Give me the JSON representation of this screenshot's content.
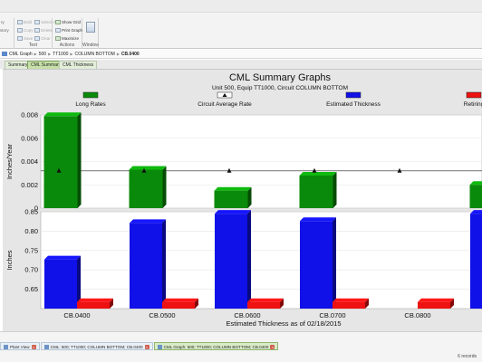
{
  "ribbon": {
    "groups": [
      {
        "name": "",
        "items": [
          "ry",
          "story"
        ]
      },
      {
        "name": "Text",
        "items": [
          "Bold",
          "Copy",
          "Save",
          "Select All",
          "Delete",
          "Clear"
        ]
      },
      {
        "name": "Actions",
        "items": [
          "Show Grid",
          "Print Graph",
          "Maximize"
        ]
      },
      {
        "name": "Window",
        "items": []
      }
    ]
  },
  "breadcrumb": [
    "CML Graph",
    "500",
    "TT1000",
    "COLUMN BOTTOM",
    "CB.0400"
  ],
  "tabs": [
    "Summary",
    "CML Summary",
    "CML Thickness"
  ],
  "chart_data": {
    "type": "bar",
    "title": "CML Summary Graphs",
    "subtitle": "Unit 500, Equip TT1000, Circuit COLUMN BOTTOM",
    "xlabel": "Estimated Thickness as of 02/18/2015",
    "legend": [
      "Long Rates",
      "Circuit Average Rate",
      "Estimated Thickness",
      "Retiring"
    ],
    "categories": [
      "CB.0400",
      "CB.0500",
      "CB.0600",
      "CB.0700",
      "CB.0800",
      "CB.0900"
    ],
    "top_panel": {
      "ylabel": "Inches/Year",
      "ylim": [
        0,
        0.008
      ],
      "yticks": [
        "0",
        "0.002",
        "0.004",
        "0.006",
        "0.008"
      ],
      "long_rates": [
        0.0079,
        0.0033,
        0.0015,
        0.0028,
        null,
        0.002
      ],
      "circuit_average_rate": 0.0032
    },
    "bottom_panel": {
      "ylabel": "Inches",
      "ylim": [
        0.6,
        0.85
      ],
      "yticks": [
        "0.65",
        "0.70",
        "0.75",
        "0.80",
        "0.85"
      ],
      "estimated_thickness": [
        0.727,
        0.821,
        0.845,
        0.826,
        null,
        0.845
      ],
      "retiring": [
        0.617,
        0.617,
        0.617,
        0.617,
        0.617,
        0.617
      ]
    },
    "colors": {
      "long_rates": "#0a8a0a",
      "estimated_thickness": "#1010e8",
      "retiring": "#ee1111"
    }
  },
  "bottom_tabs": [
    "Plant View",
    "CML: 500; TT1000; COLUMN BOTTOM; CB.0400",
    "CML Graph: 500; TT1000; COLUMN BOTTOM; CB.0400"
  ],
  "records": "6 records"
}
